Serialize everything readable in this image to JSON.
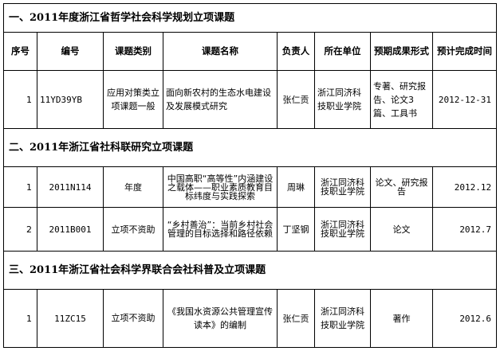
{
  "headers": [
    "序号",
    "编号",
    "课题类别",
    "课题名称",
    "负责人",
    "所在单位",
    "预期成果形式",
    "预计完成时间"
  ],
  "sections": [
    {
      "title": "一、2011年度浙江省哲学社会科学规划立项课题",
      "rows": [
        {
          "seq": "1",
          "code": "11YD39YB",
          "category": "应用对策类立项课题一般",
          "name": "面向新农村的生态水电建设及发展模式研究",
          "leader": "张仁贡",
          "unit": "浙江同济科技职业学院",
          "output": "专著、研究报告、论文3篇、工具书",
          "due": "2012-12-31"
        }
      ]
    },
    {
      "title": "二、2011年浙江省社科联研究立项课题",
      "rows": [
        {
          "seq": "1",
          "code": "2011N114",
          "category": "年度",
          "name": "中国高职“高等性”内涵建设之载体——职业素质教育目标纬度与实践探索",
          "leader": "周琳",
          "unit": "浙江同济科技职业学院",
          "output": "论文、研究报告",
          "due": "2012.12"
        },
        {
          "seq": "2",
          "code": "2011B001",
          "category": "立项不资助",
          "name": "“乡村善治”：当前乡村社会管理的目标选择和路径依赖",
          "leader": "丁坚钢",
          "unit": "浙江同济科技职业学院",
          "output": "论文",
          "due": "2012.7"
        }
      ]
    },
    {
      "title": "三、2011年浙江省社会科学界联合会社科普及立项课题",
      "rows": [
        {
          "seq": "1",
          "code": "11ZC15",
          "category": "立项不资助",
          "name": "《我国水资源公共管理宣传读本》的编制",
          "leader": "张仁贡",
          "unit": "浙江同济科技职业学院",
          "output": "著作",
          "due": "2012.6"
        }
      ]
    }
  ]
}
